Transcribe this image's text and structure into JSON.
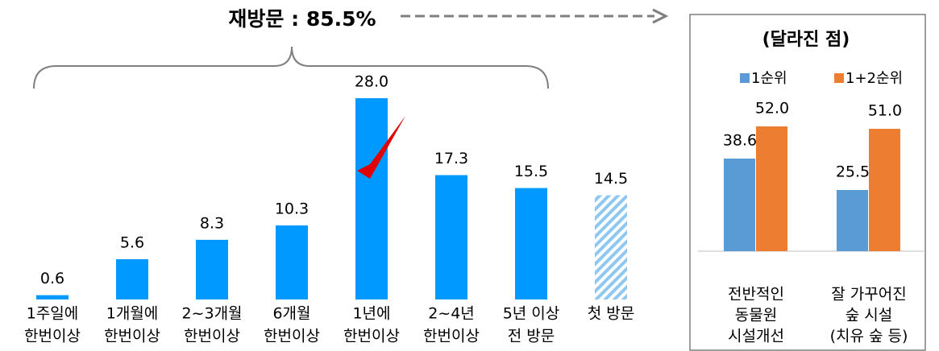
{
  "chart_data": [
    {
      "type": "bar",
      "annotation": "재방문 : 85.5%",
      "categories": [
        [
          "1주일에",
          "한번이상"
        ],
        [
          "1개월에",
          "한번이상"
        ],
        [
          "2~3개월",
          "한번이상"
        ],
        [
          "6개월",
          "한번이상"
        ],
        [
          "1년에",
          "한번이상"
        ],
        [
          "2~4년",
          "한번이상"
        ],
        [
          "5년 이상",
          "전 방문"
        ],
        [
          "첫 방문"
        ]
      ],
      "values": [
        0.6,
        5.6,
        8.3,
        10.3,
        28.0,
        17.3,
        15.5,
        14.5
      ],
      "value_labels": [
        "0.6",
        "5.6",
        "8.3",
        "10.3",
        "28.0",
        "17.3",
        "15.5",
        "14.5"
      ],
      "color": "#0099ff",
      "styles": [
        "solid",
        "solid",
        "solid",
        "solid",
        "solid",
        "solid",
        "solid",
        "hatched"
      ]
    },
    {
      "type": "grouped_bar",
      "title": "(달라진 점)",
      "categories": [
        [
          "전반적인",
          "동물원",
          "시설개선"
        ],
        [
          "잘 가꾸어진",
          "숲 시설",
          "(치유 숲 등)"
        ]
      ],
      "series": [
        {
          "name": "1순위",
          "color": "#5b9bd5",
          "values": [
            38.6,
            25.5
          ],
          "value_labels": [
            "38.6",
            "25.5"
          ]
        },
        {
          "name": "1+2순위",
          "color": "#ed7d31",
          "values": [
            52.0,
            51.0
          ],
          "value_labels": [
            "52.0",
            "51.0"
          ]
        }
      ]
    }
  ]
}
